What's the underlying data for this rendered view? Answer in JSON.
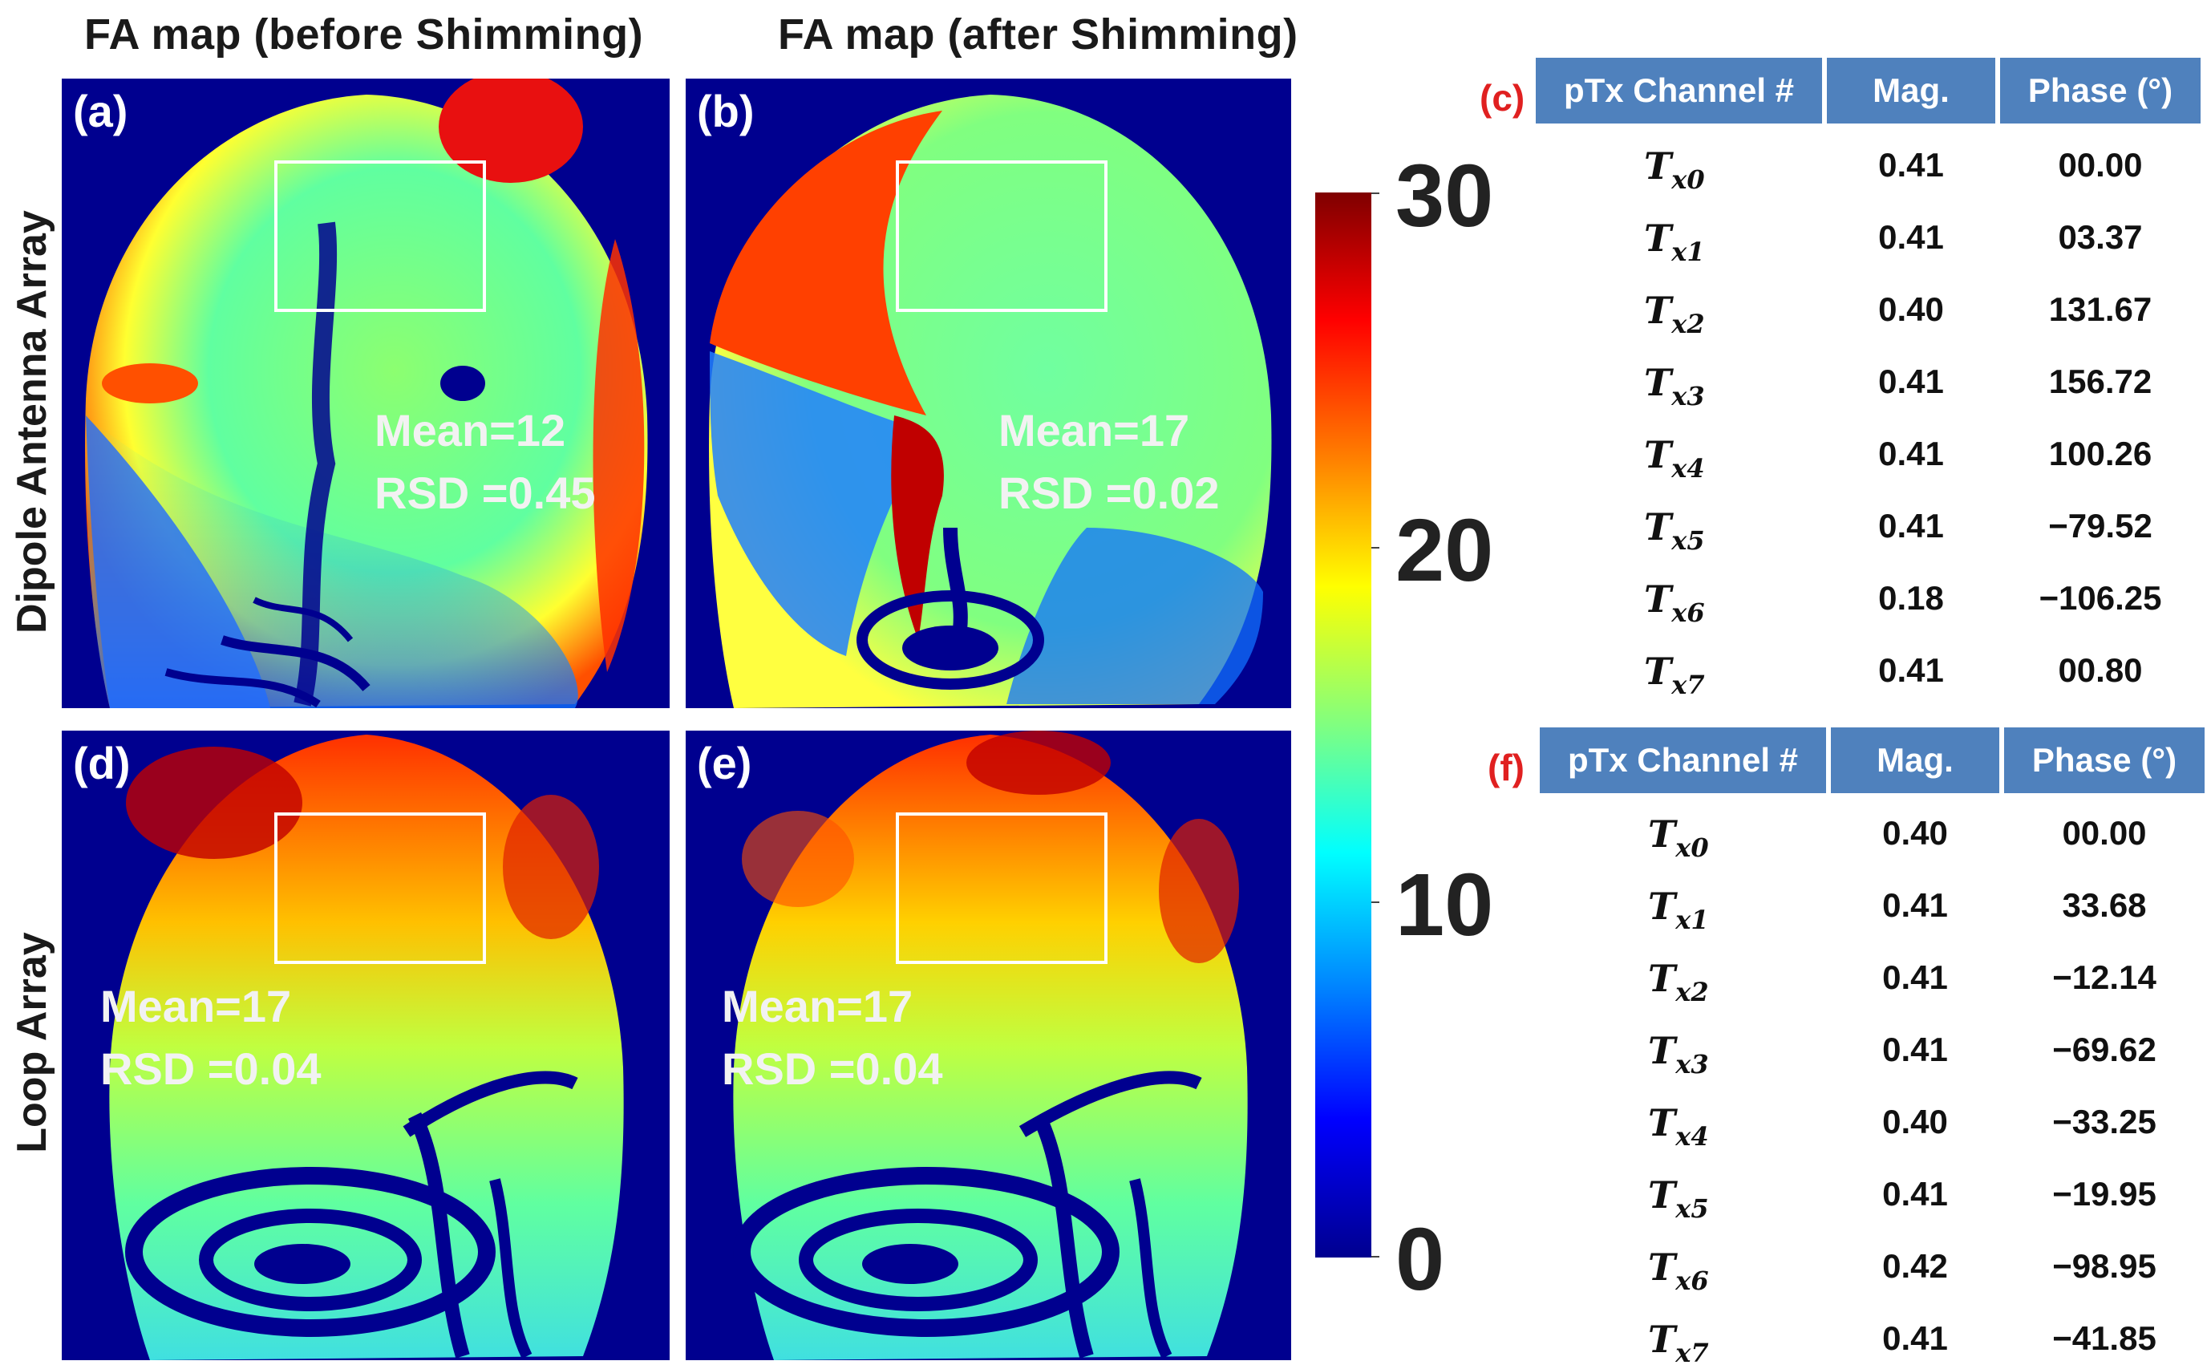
{
  "titles": {
    "before": "FA map (before Shimming)",
    "after": "FA map (after Shimming)"
  },
  "rows": {
    "dipole": "Dipole Antenna Array",
    "loop": "Loop Array"
  },
  "panels": {
    "a": {
      "tag": "(a)",
      "mean": "Mean=12",
      "rsd": "RSD =0.45"
    },
    "b": {
      "tag": "(b)",
      "mean": "Mean=17",
      "rsd": "RSD =0.02"
    },
    "d": {
      "tag": "(d)",
      "mean": "Mean=17",
      "rsd": "RSD =0.04"
    },
    "e": {
      "tag": "(e)",
      "mean": "Mean=17",
      "rsd": "RSD =0.04"
    }
  },
  "colorbar": {
    "ticks": [
      "30",
      "20",
      "10",
      "0"
    ],
    "colormap": "jet"
  },
  "tables": {
    "c": {
      "letter": "(c)",
      "headers": [
        "pTx Channel #",
        "Mag.",
        "Phase (°)"
      ],
      "rows": [
        {
          "ch": "T",
          "sub": "x0",
          "mag": "0.41",
          "phase": "00.00"
        },
        {
          "ch": "T",
          "sub": "x1",
          "mag": "0.41",
          "phase": "03.37"
        },
        {
          "ch": "T",
          "sub": "x2",
          "mag": "0.40",
          "phase": "131.67"
        },
        {
          "ch": "T",
          "sub": "x3",
          "mag": "0.41",
          "phase": "156.72"
        },
        {
          "ch": "T",
          "sub": "x4",
          "mag": "0.41",
          "phase": "100.26"
        },
        {
          "ch": "T",
          "sub": "x5",
          "mag": "0.41",
          "phase": "−79.52"
        },
        {
          "ch": "T",
          "sub": "x6",
          "mag": "0.18",
          "phase": "−106.25"
        },
        {
          "ch": "T",
          "sub": "x7",
          "mag": "0.41",
          "phase": "00.80"
        }
      ]
    },
    "f": {
      "letter": "(f)",
      "headers": [
        "pTx Channel #",
        "Mag.",
        "Phase (°)"
      ],
      "rows": [
        {
          "ch": "T",
          "sub": "x0",
          "mag": "0.40",
          "phase": "00.00"
        },
        {
          "ch": "T",
          "sub": "x1",
          "mag": "0.41",
          "phase": "33.68"
        },
        {
          "ch": "T",
          "sub": "x2",
          "mag": "0.41",
          "phase": "−12.14"
        },
        {
          "ch": "T",
          "sub": "x3",
          "mag": "0.41",
          "phase": "−69.62"
        },
        {
          "ch": "T",
          "sub": "x4",
          "mag": "0.40",
          "phase": "−33.25"
        },
        {
          "ch": "T",
          "sub": "x5",
          "mag": "0.41",
          "phase": "−19.95"
        },
        {
          "ch": "T",
          "sub": "x6",
          "mag": "0.42",
          "phase": "−98.95"
        },
        {
          "ch": "T",
          "sub": "x7",
          "mag": "0.41",
          "phase": "−41.85"
        }
      ]
    }
  },
  "colors": {
    "background_map": "#00008f",
    "table_header": "#4f81bd",
    "table_letter": "#e02020"
  }
}
